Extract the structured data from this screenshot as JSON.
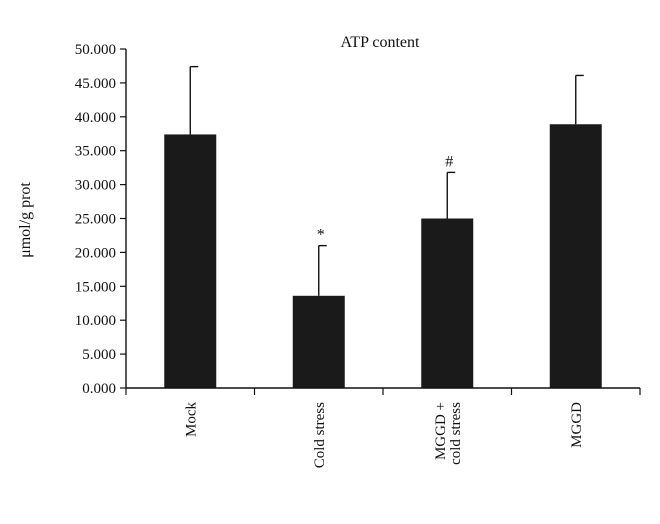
{
  "chart_data": {
    "type": "bar",
    "title": "ATP content",
    "ylabel": "μmol/g prot",
    "xlabel": "",
    "ylim": [
      0,
      50
    ],
    "yticks": [
      0,
      5,
      10,
      15,
      20,
      25,
      30,
      35,
      40,
      45,
      50
    ],
    "ytick_labels": [
      "0.000",
      "5.000",
      "10.000",
      "15.000",
      "20.000",
      "25.000",
      "30.000",
      "35.000",
      "40.000",
      "45.000",
      "50.000"
    ],
    "categories": [
      [
        "Mock"
      ],
      [
        "Cold stress"
      ],
      [
        "MGGD +",
        "cold stress"
      ],
      [
        "MGGD"
      ]
    ],
    "values": [
      37.4,
      13.6,
      25.0,
      38.9
    ],
    "errors": [
      10.0,
      7.4,
      6.8,
      7.2
    ],
    "annotations": [
      "",
      "*",
      "#",
      ""
    ],
    "bar_color": "#1a1a1a",
    "axis_color": "#111111",
    "grid": false
  }
}
